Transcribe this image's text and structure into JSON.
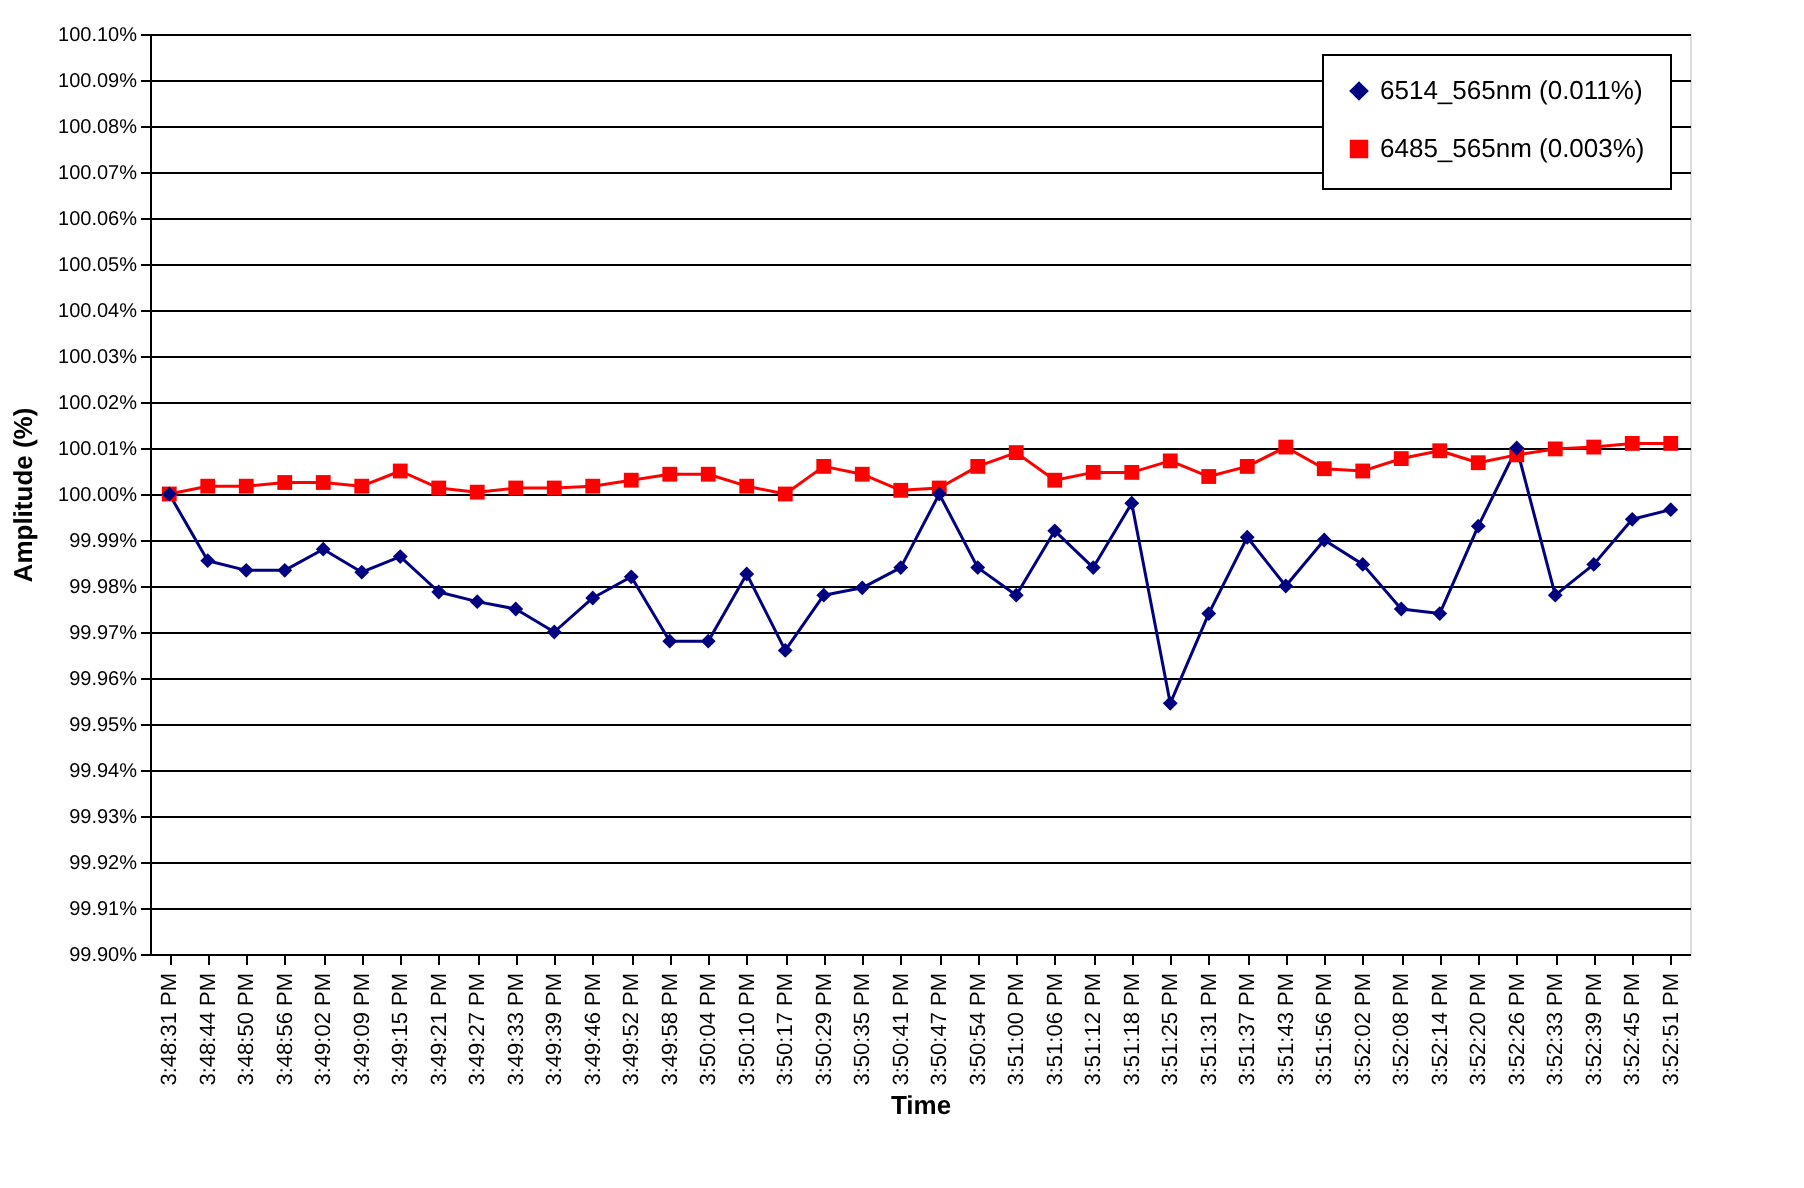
{
  "chart_data": {
    "type": "line",
    "xlabel": "Time",
    "ylabel": "Amplitude (%)",
    "categories": [
      "3:48:31 PM",
      "3:48:44 PM",
      "3:48:50 PM",
      "3:48:56 PM",
      "3:49:02 PM",
      "3:49:09 PM",
      "3:49:15 PM",
      "3:49:21 PM",
      "3:49:27 PM",
      "3:49:33 PM",
      "3:49:39 PM",
      "3:49:46 PM",
      "3:49:52 PM",
      "3:49:58 PM",
      "3:50:04 PM",
      "3:50:10 PM",
      "3:50:17 PM",
      "3:50:29 PM",
      "3:50:35 PM",
      "3:50:41 PM",
      "3:50:47 PM",
      "3:50:54 PM",
      "3:51:00 PM",
      "3:51:06 PM",
      "3:51:12 PM",
      "3:51:18 PM",
      "3:51:25 PM",
      "3:51:31 PM",
      "3:51:37 PM",
      "3:51:43 PM",
      "3:51:56 PM",
      "3:52:02 PM",
      "3:52:08 PM",
      "3:52:14 PM",
      "3:52:20 PM",
      "3:52:26 PM",
      "3:52:33 PM",
      "3:52:39 PM",
      "3:52:45 PM",
      "3:52:51 PM"
    ],
    "series": [
      {
        "name": "6514_565nm (0.011%)",
        "color": "#000080",
        "marker": "diamond",
        "values": [
          100.0,
          99.9855,
          99.9834,
          99.9834,
          99.988,
          99.983,
          99.9864,
          99.9787,
          99.9766,
          99.975,
          99.97,
          99.9774,
          99.982,
          99.968,
          99.968,
          99.9826,
          99.966,
          99.978,
          99.9796,
          99.984,
          100.0,
          99.984,
          99.978,
          99.992,
          99.984,
          99.998,
          99.9545,
          99.974,
          99.9906,
          99.98,
          99.99,
          99.9847,
          99.975,
          99.974,
          99.993,
          100.01,
          99.978,
          99.9847,
          99.9945,
          99.9966
        ]
      },
      {
        "name": "6485_565nm (0.003%)",
        "color": "#ff0000",
        "marker": "square",
        "values": [
          100.0,
          100.0017,
          100.0017,
          100.0025,
          100.0025,
          100.0017,
          100.005,
          100.0013,
          100.0004,
          100.0013,
          100.0013,
          100.0017,
          100.003,
          100.0043,
          100.0043,
          100.0017,
          100.0,
          100.006,
          100.0043,
          100.0008,
          100.0013,
          100.006,
          100.009,
          100.003,
          100.0047,
          100.0047,
          100.0072,
          100.0038,
          100.006,
          100.0102,
          100.0055,
          100.005,
          100.0077,
          100.0094,
          100.0068,
          100.0085,
          100.0098,
          100.0102,
          100.011,
          100.011
        ]
      }
    ],
    "ylim": [
      99.9,
      100.1
    ],
    "yticks": [
      {
        "value": 99.9,
        "label": "99.90%"
      },
      {
        "value": 99.91,
        "label": "99.91%"
      },
      {
        "value": 99.92,
        "label": "99.92%"
      },
      {
        "value": 99.93,
        "label": "99.93%"
      },
      {
        "value": 99.94,
        "label": "99.94%"
      },
      {
        "value": 99.95,
        "label": "99.95%"
      },
      {
        "value": 99.96,
        "label": "99.96%"
      },
      {
        "value": 99.97,
        "label": "99.97%"
      },
      {
        "value": 99.98,
        "label": "99.98%"
      },
      {
        "value": 99.99,
        "label": "99.99%"
      },
      {
        "value": 100.0,
        "label": "100.00%"
      },
      {
        "value": 100.01,
        "label": "100.01%"
      },
      {
        "value": 100.02,
        "label": "100.02%"
      },
      {
        "value": 100.03,
        "label": "100.03%"
      },
      {
        "value": 100.04,
        "label": "100.04%"
      },
      {
        "value": 100.05,
        "label": "100.05%"
      },
      {
        "value": 100.06,
        "label": "100.06%"
      },
      {
        "value": 100.07,
        "label": "100.07%"
      },
      {
        "value": 100.08,
        "label": "100.08%"
      },
      {
        "value": 100.09,
        "label": "100.09%"
      },
      {
        "value": 100.1,
        "label": "100.10%"
      }
    ],
    "grid": "y",
    "legend": "top right",
    "line_style": "solid"
  }
}
